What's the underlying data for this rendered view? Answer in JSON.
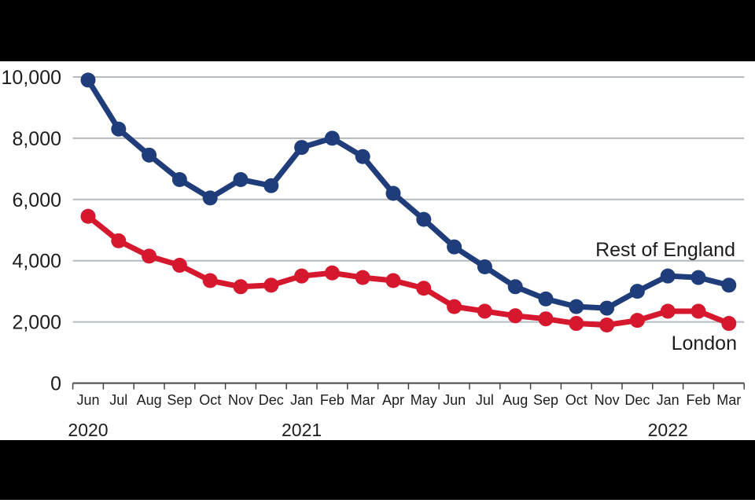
{
  "chart_data": {
    "type": "line",
    "title": "",
    "x_categories": [
      "Jun",
      "Jul",
      "Aug",
      "Sep",
      "Oct",
      "Nov",
      "Dec",
      "Jan",
      "Feb",
      "Mar",
      "Apr",
      "May",
      "Jun",
      "Jul",
      "Aug",
      "Sep",
      "Oct",
      "Nov",
      "Dec",
      "Jan",
      "Feb",
      "Mar"
    ],
    "x_year_labels": [
      {
        "label": "2020",
        "month_index": 0
      },
      {
        "label": "2021",
        "month_index": 7
      },
      {
        "label": "2022",
        "month_index": 19
      }
    ],
    "series": [
      {
        "name": "Rest of England",
        "color": "#1f3d7a",
        "values": [
          9900,
          8300,
          7450,
          6650,
          6050,
          6650,
          6450,
          7700,
          8000,
          7400,
          6200,
          5350,
          4450,
          3800,
          3150,
          2750,
          2500,
          2450,
          3000,
          3500,
          3450,
          3200
        ]
      },
      {
        "name": "London",
        "color": "#d6182e",
        "values": [
          5450,
          4650,
          4150,
          3850,
          3350,
          3150,
          3200,
          3500,
          3600,
          3450,
          3350,
          3100,
          2500,
          2350,
          2200,
          2100,
          1950,
          1900,
          2050,
          2350,
          2350,
          1950
        ]
      }
    ],
    "ylim": [
      0,
      10000
    ],
    "ytick_interval": 2000,
    "ytick_labels": [
      "0",
      "2,000",
      "4,000",
      "6,000",
      "8,000",
      "10,000"
    ],
    "grid": "horizontal gridlines at each 2,000",
    "legend": "inline labels at line ends (right side)"
  },
  "colors": {
    "page_background": "#000000",
    "panel_background": "#ffffff",
    "gridline": "#b4bac0",
    "axis": "#454545",
    "text": "#1d1d1b",
    "rest_of_england_line": "#1f3d7a",
    "london_line": "#d6182e"
  }
}
